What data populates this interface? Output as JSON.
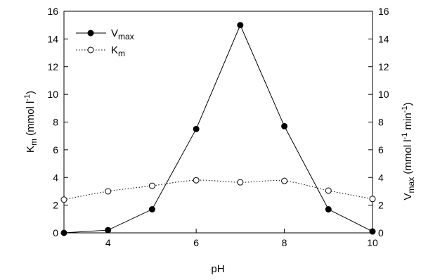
{
  "chart_data": {
    "type": "line",
    "xlabel": "pH",
    "xlim": [
      3,
      10
    ],
    "x_ticks": [
      4,
      6,
      8,
      10
    ],
    "left_axis": {
      "label_main": "K",
      "label_sub": "m",
      "label_unit": " (mmol l",
      "label_exp": "-1",
      "label_close": ")",
      "ylim": [
        0,
        16
      ],
      "ticks": [
        0,
        2,
        4,
        6,
        8,
        10,
        12,
        14,
        16
      ]
    },
    "right_axis": {
      "label_main": "V",
      "label_sub": "max",
      "label_unit1": " (mmol l",
      "label_exp1": "-1",
      "label_unit2": " min",
      "label_exp2": "-1",
      "label_close": ")",
      "ylim": [
        0,
        16
      ],
      "ticks": [
        0,
        2,
        4,
        6,
        8,
        10,
        12,
        14,
        16
      ]
    },
    "series": [
      {
        "name_main": "V",
        "name_sub": "max",
        "marker": "filled-circle",
        "line": "solid",
        "axis": "right",
        "x": [
          3,
          4,
          5,
          6,
          7,
          8,
          9,
          10
        ],
        "y": [
          0,
          0.2,
          1.7,
          7.5,
          15,
          7.7,
          1.7,
          0.1
        ]
      },
      {
        "name_main": "K",
        "name_sub": "m",
        "marker": "open-circle",
        "line": "dotted",
        "axis": "left",
        "x": [
          3,
          4,
          5,
          6,
          7,
          8,
          9,
          10
        ],
        "y": [
          2.4,
          3.0,
          3.4,
          3.8,
          3.65,
          3.75,
          3.05,
          2.45
        ]
      }
    ],
    "legend_position": "top-left",
    "grid": false
  }
}
